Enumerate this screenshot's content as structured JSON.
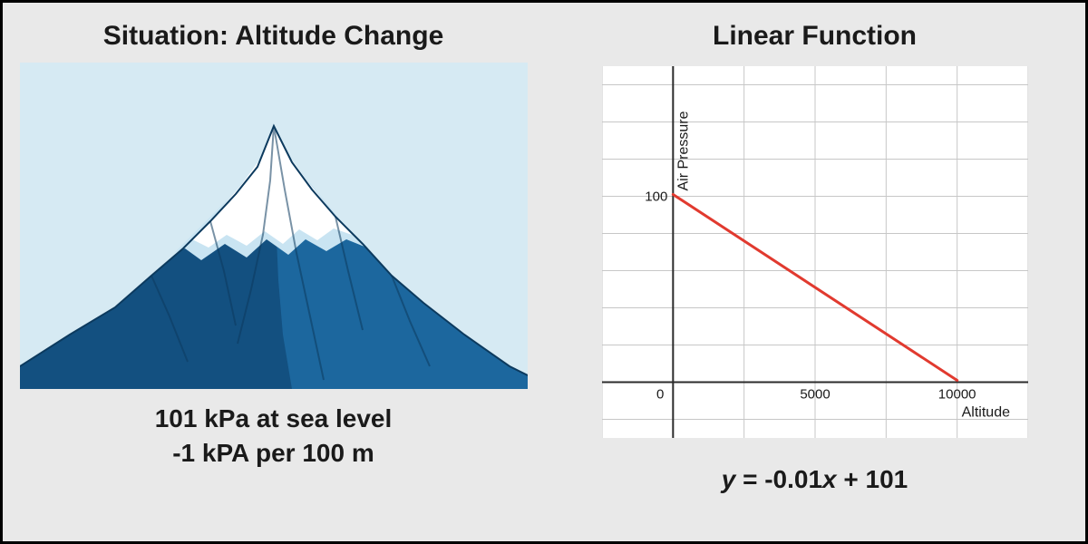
{
  "left": {
    "title": "Situation: Altitude Change",
    "illustration": {
      "type": "mountain",
      "sky_color": "#d6eaf3",
      "snow_color": "#ffffff",
      "snow_shadow": "#c9e4f2",
      "rock_color": "#1e6ba3",
      "rock_shadow": "#135080",
      "outline_color": "#0c3a5e"
    },
    "caption_line1": "101 kPa at sea level",
    "caption_line2": "-1 kPA per 100 m"
  },
  "right": {
    "title": "Linear Function",
    "chart": {
      "type": "line",
      "background_color": "#ffffff",
      "grid_color": "#c7c7c7",
      "axis_color": "#2b2b2b",
      "line_color": "#e13a2f",
      "line_width": 3,
      "x_label": "Altitude",
      "y_label": "Air Pressure",
      "label_fontsize": 16,
      "tick_fontsize": 15,
      "x_ticks": [
        0,
        5000,
        10000
      ],
      "x_tick_labels": [
        "0",
        "5000",
        "10000"
      ],
      "y_ticks": [
        100
      ],
      "y_tick_labels": [
        "100"
      ],
      "xlim": [
        -2500,
        12500
      ],
      "ylim": [
        -30,
        170
      ],
      "grid_x_step": 2500,
      "grid_y_step": 20,
      "series": [
        {
          "points": [
            [
              0,
              101
            ],
            [
              10000,
              1
            ]
          ]
        }
      ]
    },
    "equation_y": "y",
    "equation_mid1": " = -0.01",
    "equation_x": "x",
    "equation_mid2": " + 101"
  }
}
